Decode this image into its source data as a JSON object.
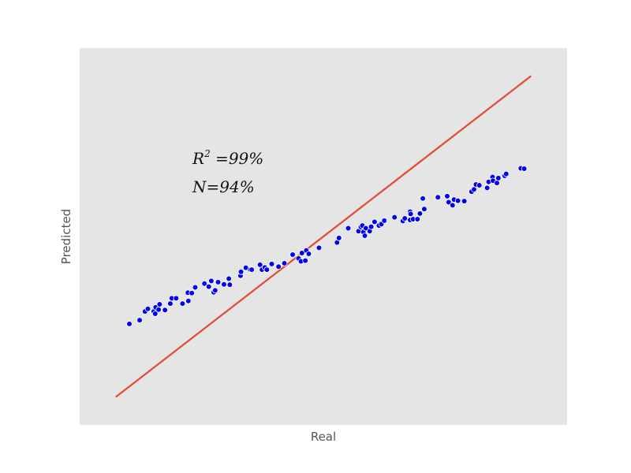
{
  "chart_data": {
    "type": "scatter",
    "xlabel": "Real",
    "ylabel": "Predicted",
    "xlim": [
      0,
      100
    ],
    "ylim": [
      0,
      100
    ],
    "grid": false,
    "background_color": "#e5e5e5",
    "point_color": "#0000ee",
    "line_color": "#e24a33",
    "annotations": [
      {
        "base": "R",
        "sup": "2",
        "rest": " =99%"
      },
      {
        "base": "N",
        "sup": "",
        "rest": "=94%"
      }
    ],
    "reference_line": {
      "x": [
        7.4,
        92.6
      ],
      "y": [
        7.4,
        92.6
      ]
    },
    "points": [
      {
        "x": 10.2,
        "y": 26.8
      },
      {
        "x": 12.3,
        "y": 27.8
      },
      {
        "x": 13.4,
        "y": 30.1
      },
      {
        "x": 14.0,
        "y": 30.8
      },
      {
        "x": 15.2,
        "y": 30.1
      },
      {
        "x": 15.5,
        "y": 29.5
      },
      {
        "x": 15.6,
        "y": 31.2
      },
      {
        "x": 16.2,
        "y": 30.6
      },
      {
        "x": 16.4,
        "y": 32.0
      },
      {
        "x": 17.5,
        "y": 30.5
      },
      {
        "x": 18.6,
        "y": 32.2
      },
      {
        "x": 18.9,
        "y": 33.6
      },
      {
        "x": 19.8,
        "y": 33.6
      },
      {
        "x": 21.1,
        "y": 32.2
      },
      {
        "x": 22.2,
        "y": 35.1
      },
      {
        "x": 22.3,
        "y": 32.9
      },
      {
        "x": 23.0,
        "y": 35.0
      },
      {
        "x": 23.7,
        "y": 36.5
      },
      {
        "x": 25.6,
        "y": 37.5
      },
      {
        "x": 26.5,
        "y": 36.7
      },
      {
        "x": 27.0,
        "y": 38.2
      },
      {
        "x": 27.5,
        "y": 35.2
      },
      {
        "x": 27.8,
        "y": 35.7
      },
      {
        "x": 28.4,
        "y": 37.9
      },
      {
        "x": 29.6,
        "y": 37.3
      },
      {
        "x": 30.6,
        "y": 38.8
      },
      {
        "x": 30.8,
        "y": 37.2
      },
      {
        "x": 33.0,
        "y": 39.6
      },
      {
        "x": 33.1,
        "y": 40.6
      },
      {
        "x": 34.1,
        "y": 41.7
      },
      {
        "x": 35.0,
        "y": 41.2
      },
      {
        "x": 35.3,
        "y": 41.2
      },
      {
        "x": 37.0,
        "y": 42.5
      },
      {
        "x": 37.4,
        "y": 41.2
      },
      {
        "x": 38.0,
        "y": 41.8
      },
      {
        "x": 38.4,
        "y": 41.2
      },
      {
        "x": 39.4,
        "y": 42.7
      },
      {
        "x": 40.8,
        "y": 42.0
      },
      {
        "x": 42.0,
        "y": 42.9
      },
      {
        "x": 43.7,
        "y": 45.2
      },
      {
        "x": 44.9,
        "y": 44.2
      },
      {
        "x": 45.4,
        "y": 43.4
      },
      {
        "x": 45.6,
        "y": 45.6
      },
      {
        "x": 46.3,
        "y": 43.6
      },
      {
        "x": 46.5,
        "y": 46.3
      },
      {
        "x": 47.0,
        "y": 45.4
      },
      {
        "x": 49.1,
        "y": 47.0
      },
      {
        "x": 52.8,
        "y": 48.4
      },
      {
        "x": 53.2,
        "y": 49.6
      },
      {
        "x": 55.1,
        "y": 52.2
      },
      {
        "x": 57.2,
        "y": 51.4
      },
      {
        "x": 57.7,
        "y": 52.5
      },
      {
        "x": 58.0,
        "y": 52.9
      },
      {
        "x": 58.2,
        "y": 51.2
      },
      {
        "x": 58.5,
        "y": 50.2
      },
      {
        "x": 58.7,
        "y": 52.2
      },
      {
        "x": 59.5,
        "y": 51.4
      },
      {
        "x": 59.8,
        "y": 52.6
      },
      {
        "x": 60.5,
        "y": 53.9
      },
      {
        "x": 61.4,
        "y": 52.9
      },
      {
        "x": 61.9,
        "y": 53.3
      },
      {
        "x": 62.5,
        "y": 54.2
      },
      {
        "x": 64.6,
        "y": 55.1
      },
      {
        "x": 66.3,
        "y": 54.1
      },
      {
        "x": 66.7,
        "y": 54.8
      },
      {
        "x": 67.8,
        "y": 54.4
      },
      {
        "x": 67.8,
        "y": 56.6
      },
      {
        "x": 67.9,
        "y": 56.0
      },
      {
        "x": 68.4,
        "y": 54.6
      },
      {
        "x": 69.3,
        "y": 54.6
      },
      {
        "x": 69.8,
        "y": 56.1
      },
      {
        "x": 70.4,
        "y": 60.1
      },
      {
        "x": 70.7,
        "y": 57.3
      },
      {
        "x": 73.5,
        "y": 60.4
      },
      {
        "x": 75.4,
        "y": 60.7
      },
      {
        "x": 75.7,
        "y": 59.1
      },
      {
        "x": 76.5,
        "y": 58.3
      },
      {
        "x": 76.8,
        "y": 59.8
      },
      {
        "x": 77.6,
        "y": 59.5
      },
      {
        "x": 78.9,
        "y": 59.4
      },
      {
        "x": 80.4,
        "y": 61.9
      },
      {
        "x": 80.9,
        "y": 62.5
      },
      {
        "x": 81.3,
        "y": 63.8
      },
      {
        "x": 82.0,
        "y": 63.6
      },
      {
        "x": 83.6,
        "y": 62.9
      },
      {
        "x": 83.9,
        "y": 64.5
      },
      {
        "x": 84.7,
        "y": 65.8
      },
      {
        "x": 84.8,
        "y": 64.8
      },
      {
        "x": 85.6,
        "y": 64.2
      },
      {
        "x": 85.9,
        "y": 65.5
      },
      {
        "x": 87.2,
        "y": 66.1
      },
      {
        "x": 87.5,
        "y": 66.6
      },
      {
        "x": 90.5,
        "y": 68.1
      },
      {
        "x": 91.2,
        "y": 68.0
      }
    ]
  }
}
